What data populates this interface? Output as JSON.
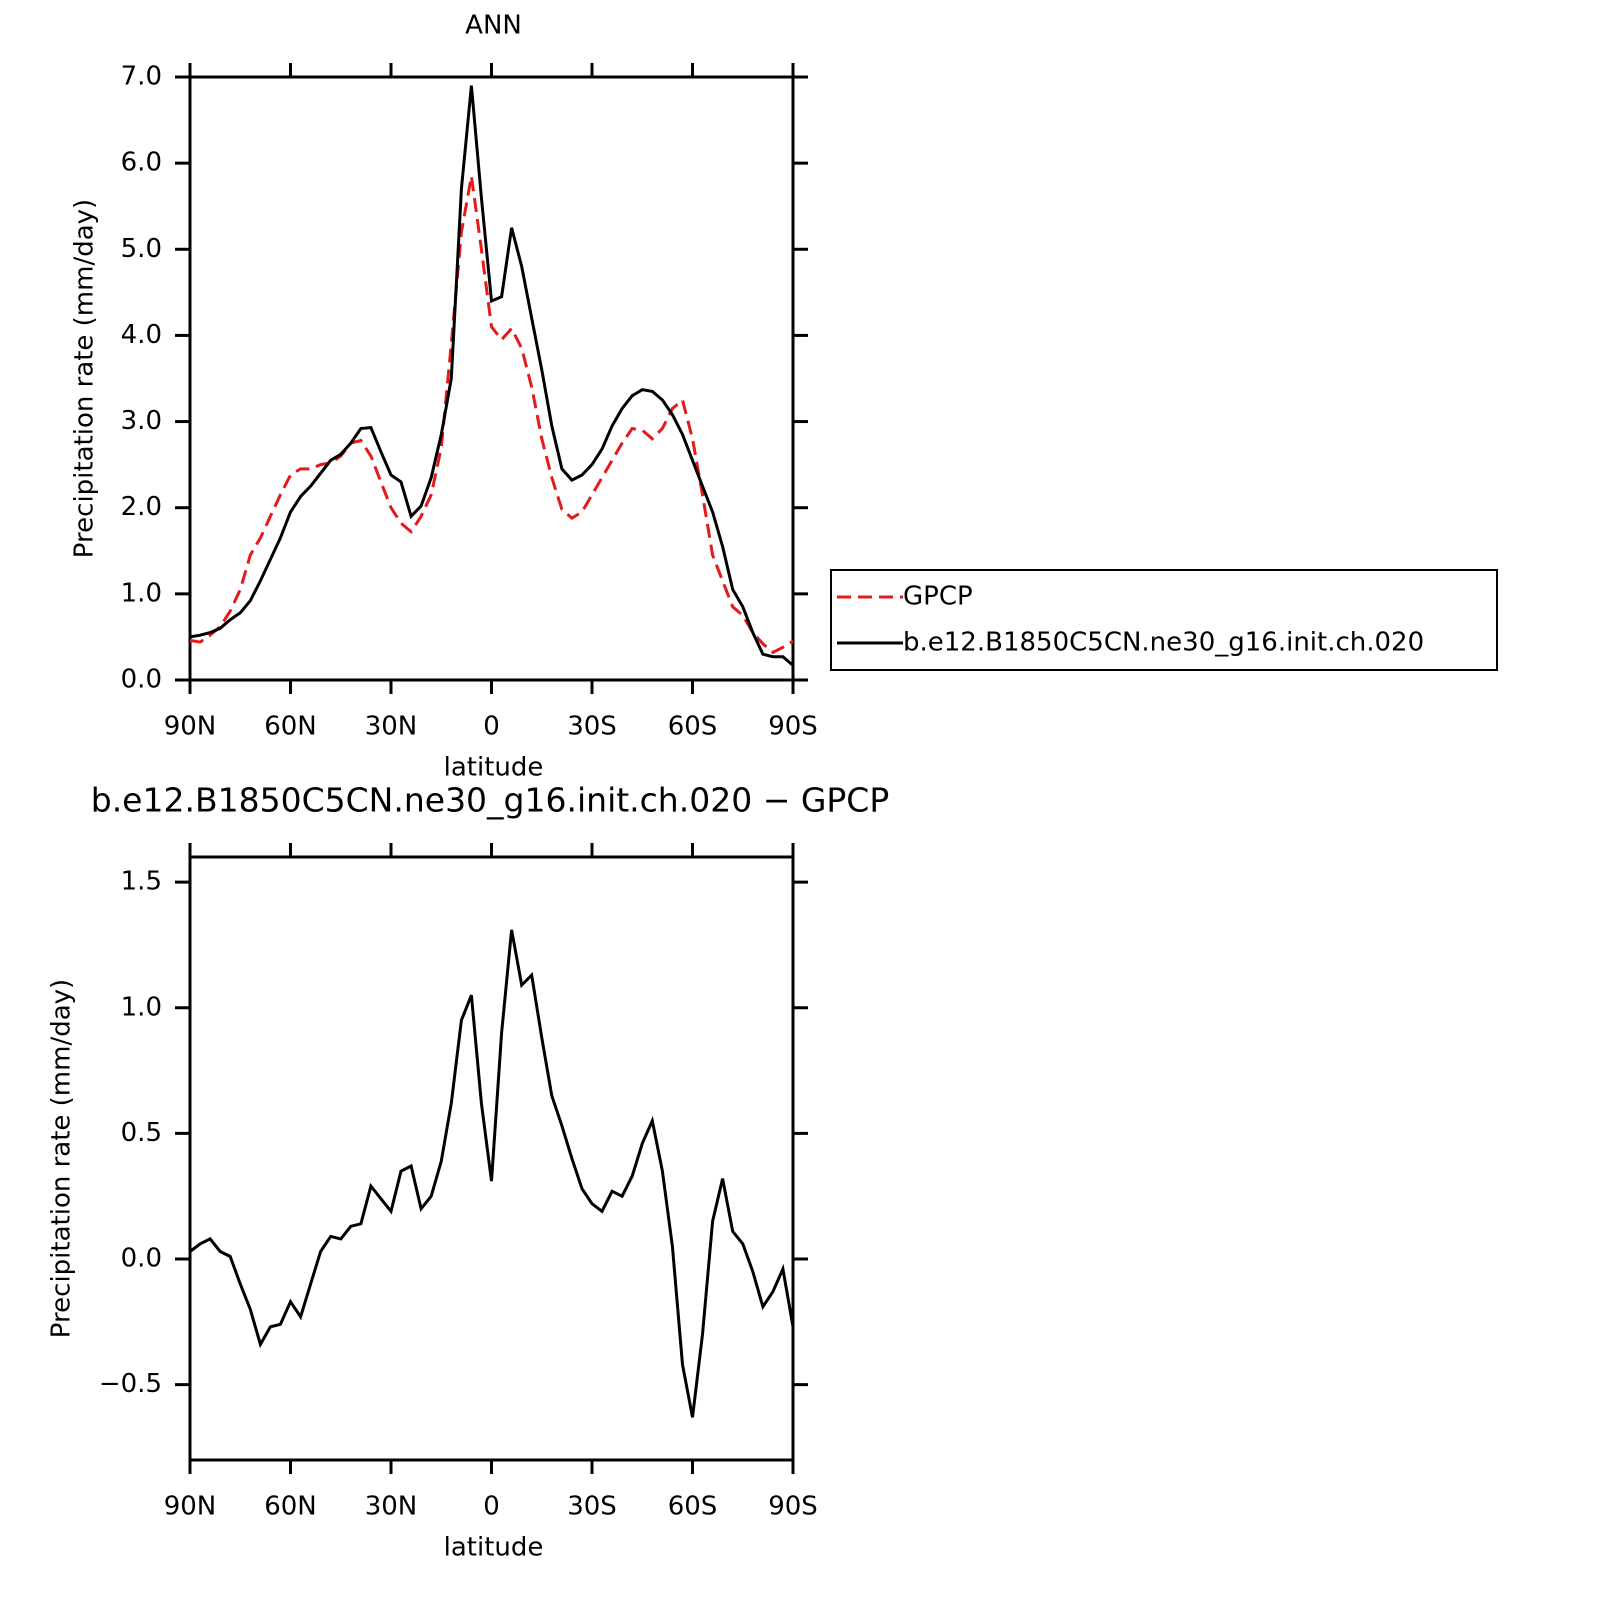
{
  "chart_data": [
    {
      "type": "line",
      "title": "ANN",
      "xlabel": "latitude",
      "ylabel": "Precipitation rate (mm/day)",
      "x": [
        90,
        87,
        84,
        81,
        78,
        75,
        72,
        69,
        66,
        63,
        60,
        57,
        54,
        51,
        48,
        45,
        42,
        39,
        36,
        33,
        30,
        27,
        24,
        21,
        18,
        15,
        12,
        9,
        6,
        3,
        0,
        -3,
        -6,
        -9,
        -12,
        -15,
        -18,
        -21,
        -24,
        -27,
        -30,
        -33,
        -36,
        -39,
        -42,
        -45,
        -48,
        -51,
        -54,
        -57,
        -60,
        -63,
        -66,
        -69,
        -72,
        -75,
        -78,
        -81,
        -84,
        -87,
        -90
      ],
      "xlim": [
        90,
        -90
      ],
      "xticks": [
        {
          "value": 90,
          "label": "90N"
        },
        {
          "value": 60,
          "label": "60N"
        },
        {
          "value": 30,
          "label": "30N"
        },
        0,
        {
          "value": -30,
          "label": "30S"
        },
        {
          "value": -60,
          "label": "60S"
        },
        {
          "value": -90,
          "label": "90S"
        }
      ],
      "ylim": [
        0,
        7
      ],
      "yticks": [
        {
          "value": 0,
          "label": "0.0"
        },
        {
          "value": 1,
          "label": "1.0"
        },
        {
          "value": 2,
          "label": "2.0"
        },
        {
          "value": 3,
          "label": "3.0"
        },
        {
          "value": 4,
          "label": "4.0"
        },
        {
          "value": 5,
          "label": "5.0"
        },
        {
          "value": 6,
          "label": "6.0"
        },
        {
          "value": 7,
          "label": "7.0"
        }
      ],
      "legend": "right",
      "series": [
        {
          "name": "GPCP",
          "color": "#e41a1c",
          "style": "dashed",
          "values": [
            0.46,
            0.44,
            0.52,
            0.62,
            0.8,
            1.05,
            1.45,
            1.65,
            1.9,
            2.15,
            2.38,
            2.45,
            2.45,
            2.5,
            2.52,
            2.6,
            2.75,
            2.78,
            2.6,
            2.3,
            2.0,
            1.82,
            1.72,
            1.9,
            2.15,
            2.7,
            3.9,
            5.2,
            5.85,
            5.0,
            4.1,
            3.95,
            4.08,
            3.85,
            3.4,
            2.8,
            2.35,
            1.98,
            1.88,
            1.95,
            2.15,
            2.35,
            2.55,
            2.75,
            2.92,
            2.9,
            2.8,
            2.92,
            3.15,
            3.25,
            2.8,
            2.15,
            1.45,
            1.15,
            0.85,
            0.75,
            0.55,
            0.42,
            0.32,
            0.38,
            0.45
          ]
        },
        {
          "name": "b.e12.B1850C5CN.ne30_g16.init.ch.020",
          "color": "#000000",
          "style": "solid",
          "values": [
            0.5,
            0.52,
            0.55,
            0.6,
            0.7,
            0.78,
            0.92,
            1.15,
            1.4,
            1.65,
            1.95,
            2.13,
            2.25,
            2.4,
            2.55,
            2.62,
            2.75,
            2.92,
            2.93,
            2.65,
            2.38,
            2.3,
            1.9,
            2.02,
            2.35,
            2.85,
            3.5,
            5.7,
            6.9,
            5.6,
            4.4,
            4.45,
            5.25,
            4.8,
            4.2,
            3.6,
            2.95,
            2.45,
            2.32,
            2.38,
            2.5,
            2.68,
            2.95,
            3.15,
            3.3,
            3.37,
            3.35,
            3.25,
            3.08,
            2.85,
            2.55,
            2.25,
            1.95,
            1.55,
            1.05,
            0.85,
            0.55,
            0.3,
            0.27,
            0.27,
            0.17
          ]
        }
      ]
    },
    {
      "type": "line",
      "title": "b.e12.B1850C5CN.ne30_g16.init.ch.020 − GPCP",
      "xlabel": "latitude",
      "ylabel": "Precipitation rate (mm/day)",
      "x": [
        90,
        87,
        84,
        81,
        78,
        75,
        72,
        69,
        66,
        63,
        60,
        57,
        54,
        51,
        48,
        45,
        42,
        39,
        36,
        33,
        30,
        27,
        24,
        21,
        18,
        15,
        12,
        9,
        6,
        3,
        0,
        -3,
        -6,
        -9,
        -12,
        -15,
        -18,
        -21,
        -24,
        -27,
        -30,
        -33,
        -36,
        -39,
        -42,
        -45,
        -48,
        -51,
        -54,
        -57,
        -60,
        -63,
        -66,
        -69,
        -72,
        -75,
        -78,
        -81,
        -84,
        -87,
        -90
      ],
      "xlim": [
        90,
        -90
      ],
      "xticks": [
        {
          "value": 90,
          "label": "90N"
        },
        {
          "value": 60,
          "label": "60N"
        },
        {
          "value": 30,
          "label": "30N"
        },
        0,
        {
          "value": -30,
          "label": "30S"
        },
        {
          "value": -60,
          "label": "60S"
        },
        {
          "value": -90,
          "label": "90S"
        }
      ],
      "ylim": [
        -0.8,
        1.6
      ],
      "yticks": [
        {
          "value": -0.5,
          "label": "−0.5"
        },
        {
          "value": 0,
          "label": "0.0"
        },
        0.5,
        {
          "value": 1,
          "label": "1.0"
        },
        1.5
      ],
      "series": [
        {
          "color": "#000000",
          "style": "solid",
          "values": [
            0.03,
            0.06,
            0.08,
            0.03,
            0.01,
            -0.1,
            -0.2,
            -0.34,
            -0.27,
            -0.26,
            -0.17,
            -0.23,
            -0.1,
            0.03,
            0.09,
            0.08,
            0.13,
            0.14,
            0.29,
            0.24,
            0.19,
            0.35,
            0.37,
            0.2,
            0.25,
            0.39,
            0.62,
            0.95,
            1.05,
            0.62,
            0.31,
            0.9,
            1.31,
            1.09,
            1.13,
            0.88,
            0.65,
            0.53,
            0.4,
            0.28,
            0.22,
            0.19,
            0.27,
            0.25,
            0.33,
            0.46,
            0.55,
            0.35,
            0.05,
            -0.42,
            -0.63,
            -0.3,
            0.15,
            0.32,
            0.11,
            0.06,
            -0.05,
            -0.19,
            -0.13,
            -0.04,
            -0.27
          ]
        }
      ]
    }
  ]
}
